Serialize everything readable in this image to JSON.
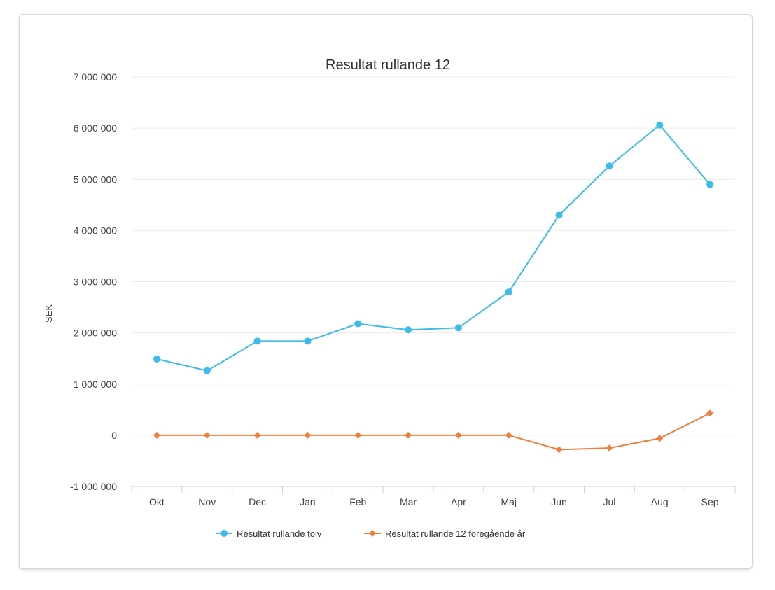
{
  "chart_data": {
    "type": "line",
    "title": "Resultat rullande 12",
    "xlabel": "",
    "ylabel": "SEK",
    "categories": [
      "Okt",
      "Nov",
      "Dec",
      "Jan",
      "Feb",
      "Mar",
      "Apr",
      "Maj",
      "Jun",
      "Jul",
      "Aug",
      "Sep"
    ],
    "y_ticks": [
      -1000000,
      0,
      1000000,
      2000000,
      3000000,
      4000000,
      5000000,
      6000000,
      7000000
    ],
    "y_tick_labels": [
      "-1 000 000",
      "0",
      "1 000 000",
      "2 000 000",
      "3 000 000",
      "4 000 000",
      "5 000 000",
      "6 000 000",
      "7 000 000"
    ],
    "ylim": [
      -1000000,
      7000000
    ],
    "grid": true,
    "legend_position": "bottom-center",
    "series": [
      {
        "name": "Resultat rullande tolv",
        "color": "#3cbcea",
        "marker": "circle",
        "values": [
          1490000,
          1260000,
          1840000,
          1840000,
          2180000,
          2060000,
          2100000,
          2800000,
          4300000,
          5260000,
          6060000,
          4900000
        ]
      },
      {
        "name": "Resultat rullande 12 föregående år",
        "color": "#f07f3c",
        "marker": "diamond",
        "values": [
          0,
          0,
          0,
          0,
          0,
          0,
          0,
          0,
          -280000,
          -250000,
          -60000,
          430000
        ]
      }
    ]
  }
}
